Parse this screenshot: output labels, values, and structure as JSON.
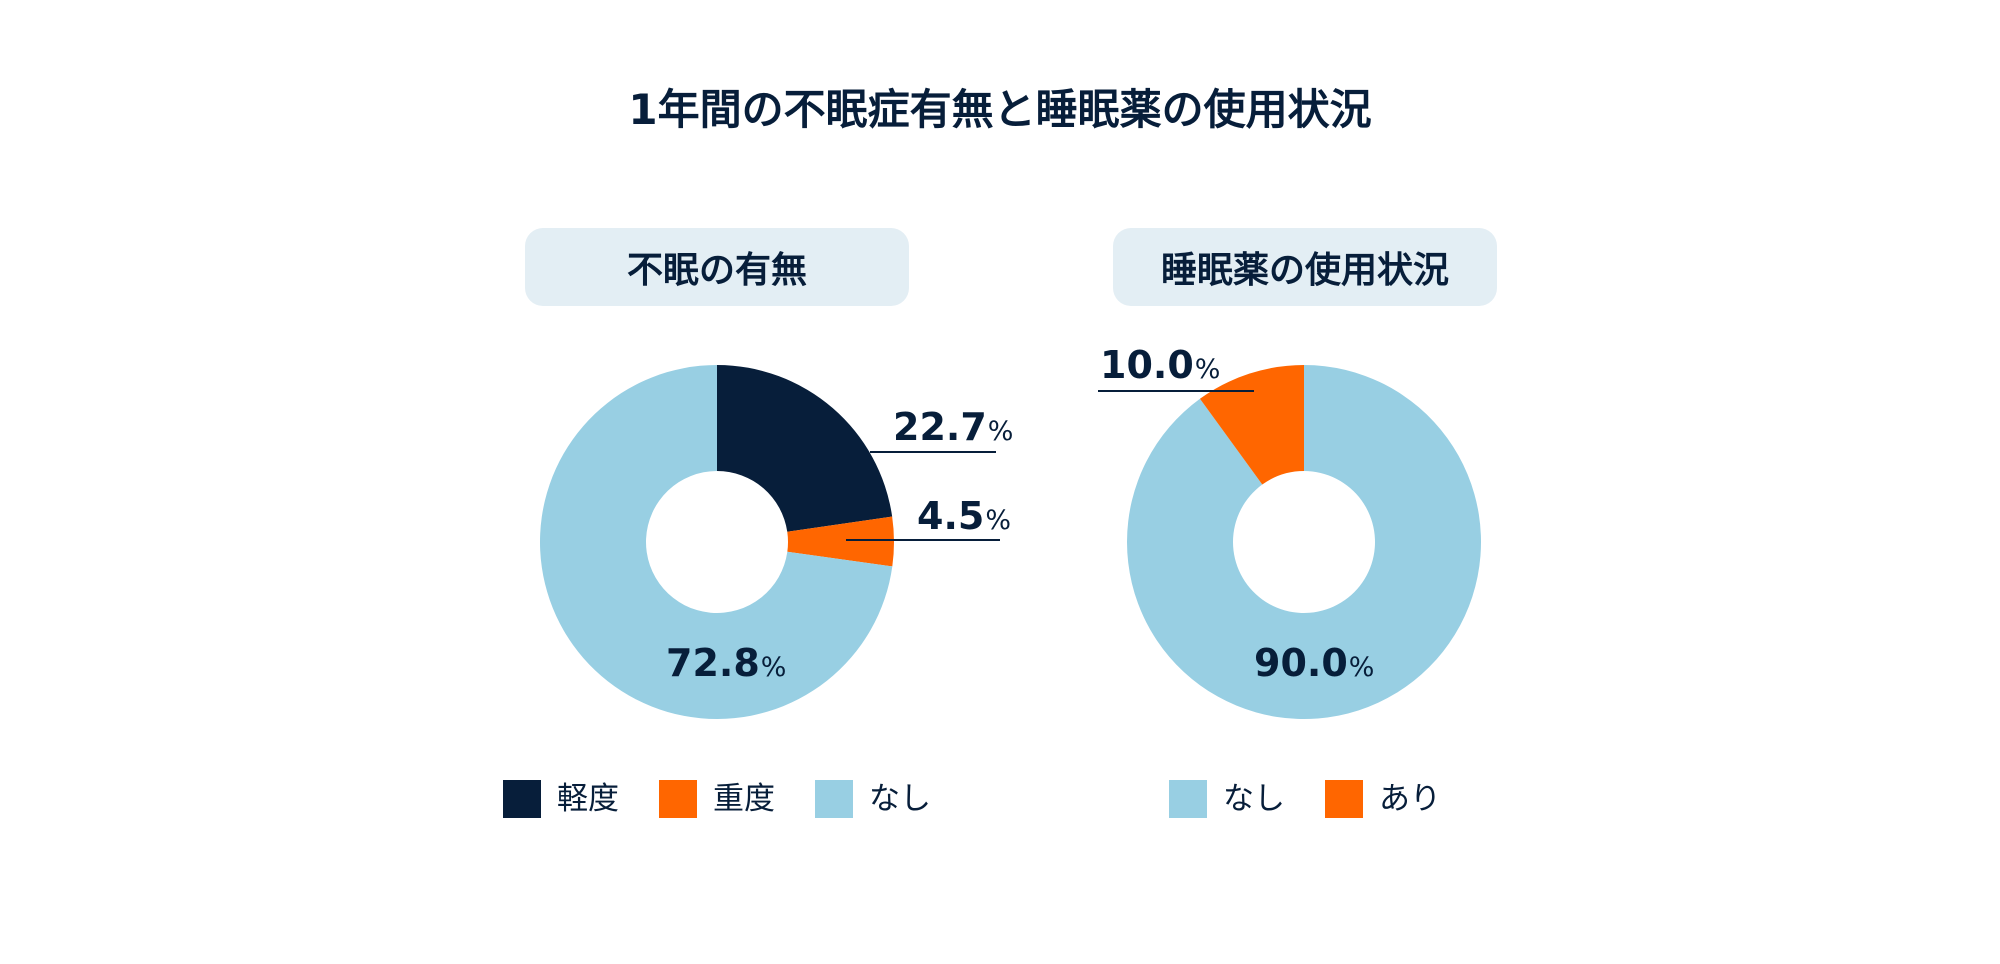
{
  "title": "1年間の不眠症有無と睡眠薬の使用状況",
  "colors": {
    "navy": "#071e3a",
    "orange": "#ff6600",
    "light_blue": "#98cfe3",
    "header_bg": "#e3eef4"
  },
  "panels": [
    {
      "header": "不眠の有無",
      "labels": [
        {
          "value": "22.7",
          "unit": "%"
        },
        {
          "value": "4.5",
          "unit": "%"
        },
        {
          "value": "72.8",
          "unit": "%"
        }
      ],
      "legend": [
        {
          "label": "軽度",
          "color": "#071e3a"
        },
        {
          "label": "重度",
          "color": "#ff6600"
        },
        {
          "label": "なし",
          "color": "#98cfe3"
        }
      ]
    },
    {
      "header": "睡眠薬の使用状況",
      "labels": [
        {
          "value": "10.0",
          "unit": "%"
        },
        {
          "value": "90.0",
          "unit": "%"
        }
      ],
      "legend": [
        {
          "label": "なし",
          "color": "#98cfe3"
        },
        {
          "label": "あり",
          "color": "#ff6600"
        }
      ]
    }
  ],
  "chart_data": [
    {
      "type": "pie",
      "subtype": "donut",
      "title": "不眠の有無",
      "categories": [
        "軽度",
        "重度",
        "なし"
      ],
      "values": [
        22.7,
        4.5,
        72.8
      ],
      "colors": [
        "#071e3a",
        "#ff6600",
        "#98cfe3"
      ],
      "unit": "%",
      "start_angle": "12 o'clock, clockwise",
      "legend_position": "bottom"
    },
    {
      "type": "pie",
      "subtype": "donut",
      "title": "睡眠薬の使用状況",
      "categories": [
        "なし",
        "あり"
      ],
      "values": [
        90.0,
        10.0
      ],
      "colors": [
        "#98cfe3",
        "#ff6600"
      ],
      "unit": "%",
      "start_angle": "12 o'clock, clockwise",
      "legend_position": "bottom"
    }
  ]
}
